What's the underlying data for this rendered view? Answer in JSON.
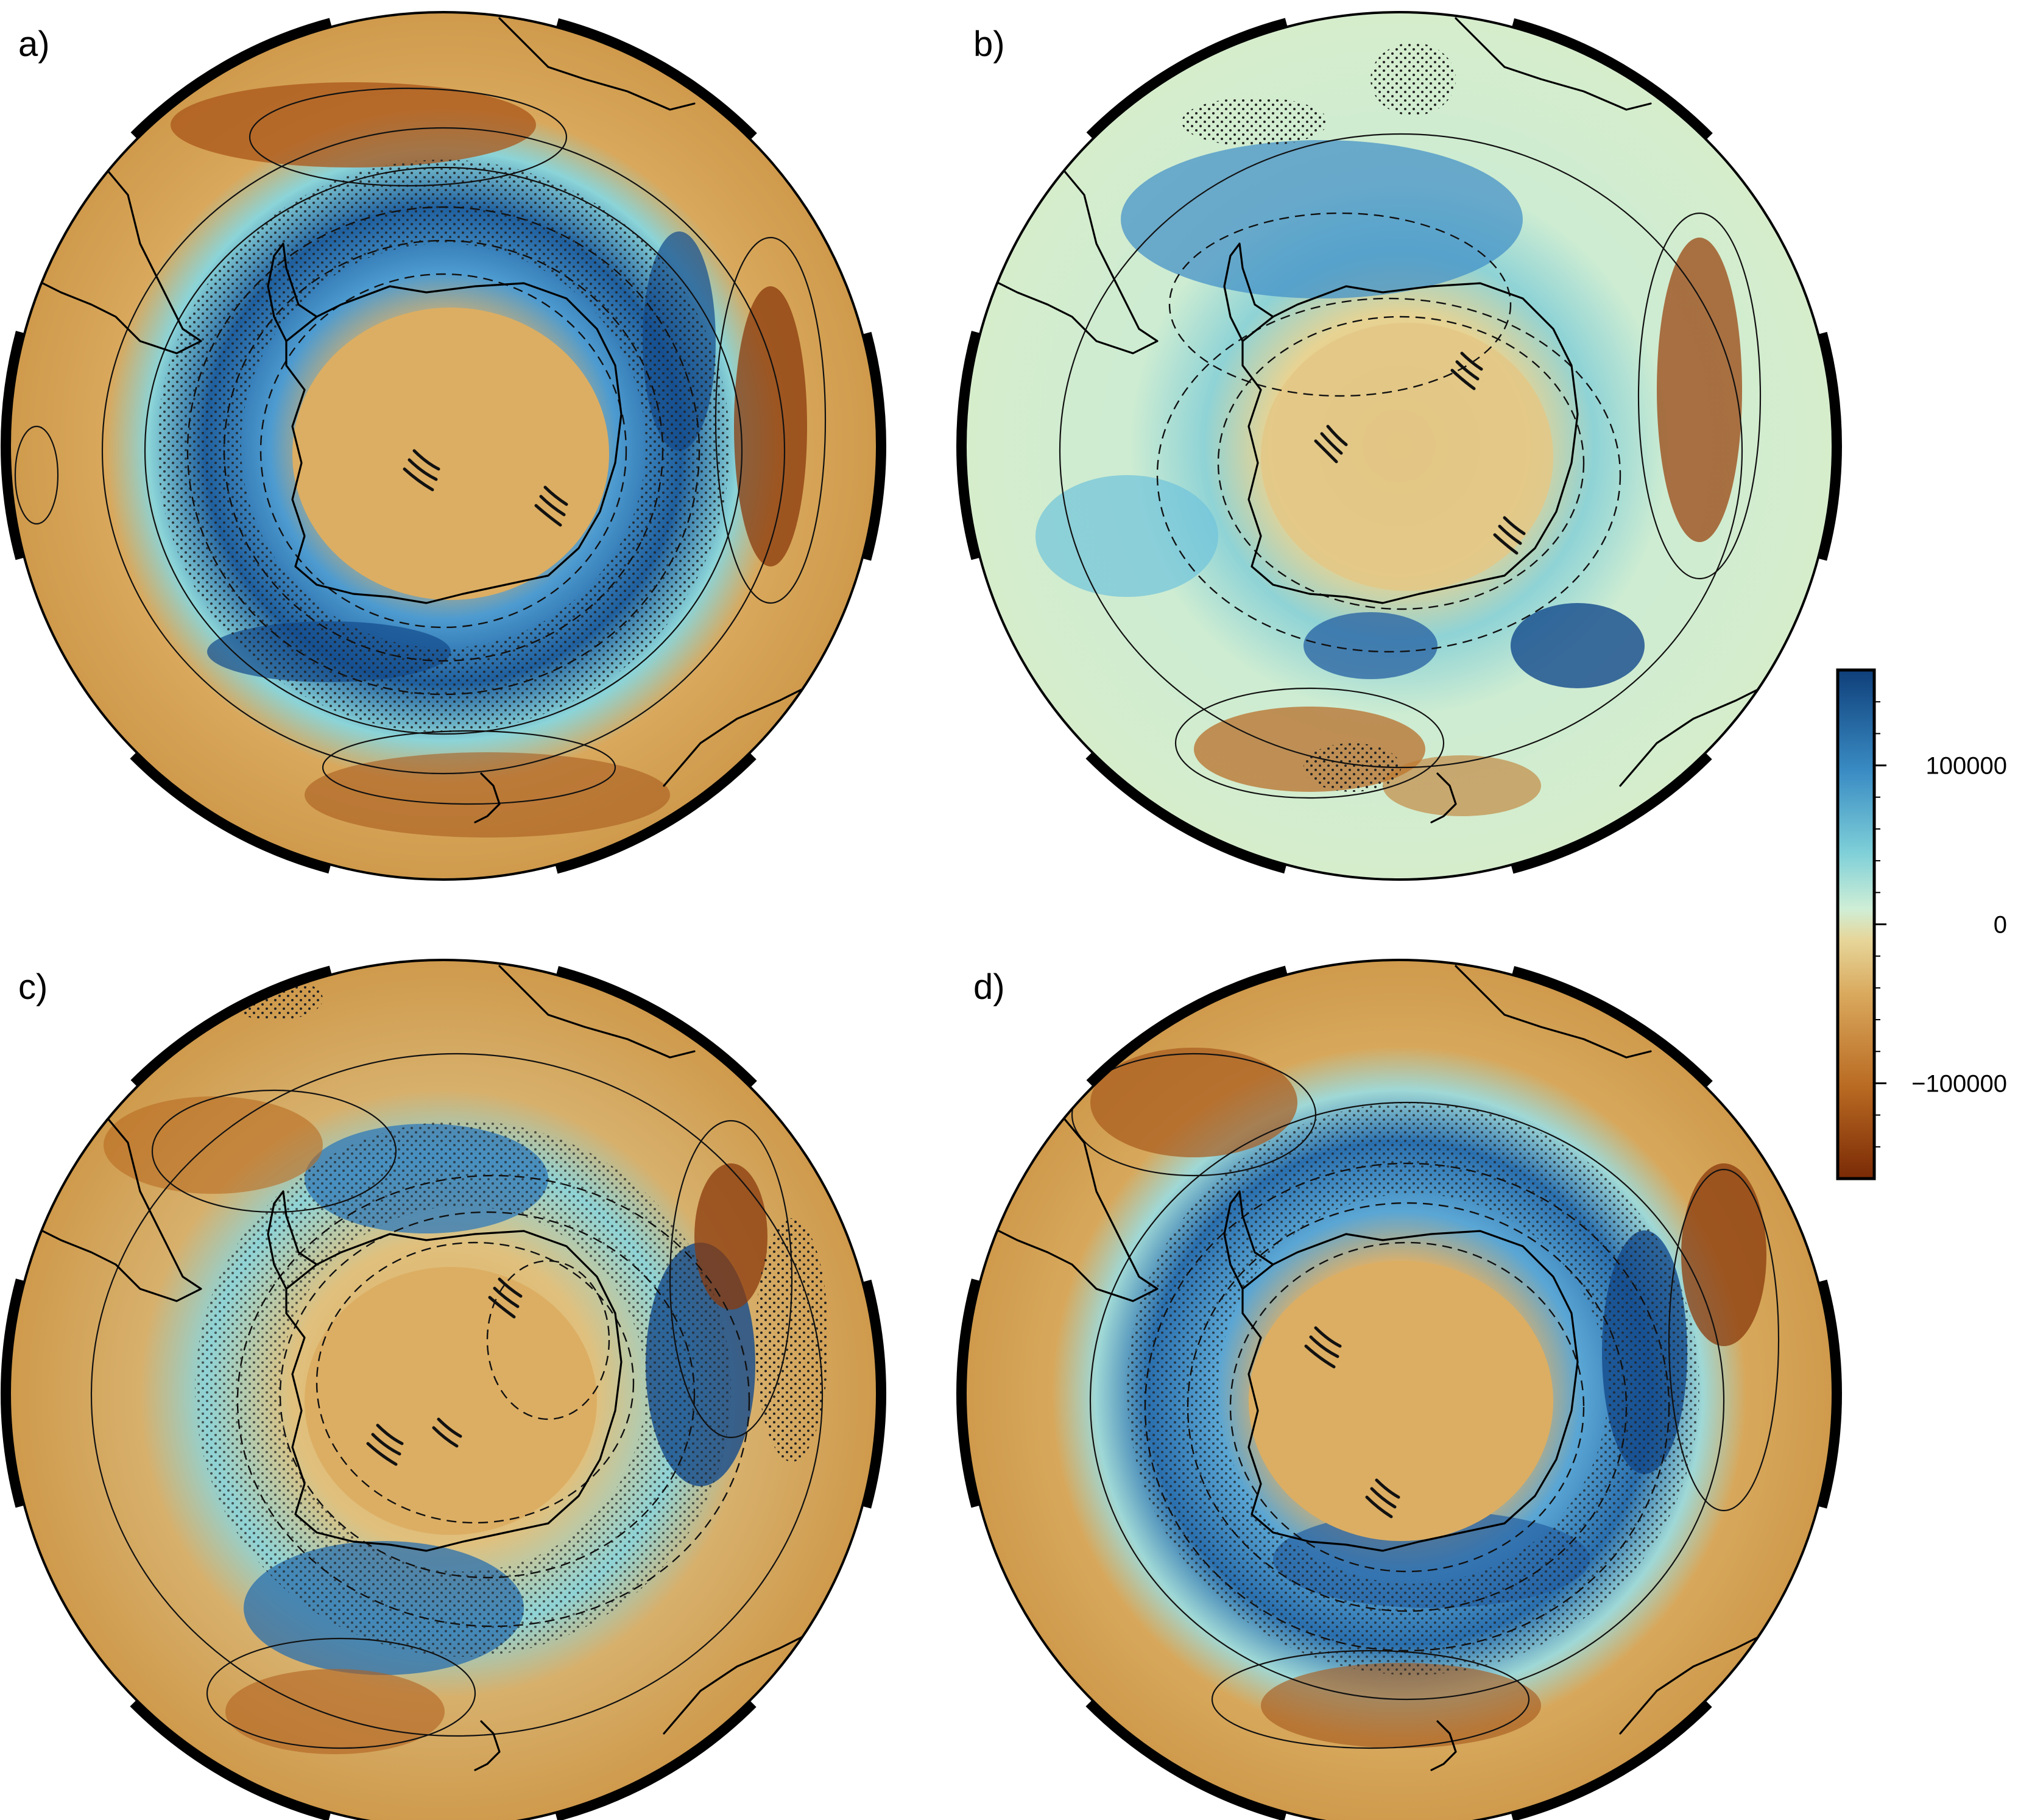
{
  "panels": [
    {
      "id": "a",
      "label": "a)"
    },
    {
      "id": "b",
      "label": "b)"
    },
    {
      "id": "c",
      "label": "c)"
    },
    {
      "id": "d",
      "label": "d)"
    }
  ],
  "colorbar": {
    "min": -160000,
    "max": 160000,
    "ticks": [
      {
        "value": 100000,
        "label": "100000"
      },
      {
        "value": 0,
        "label": "0"
      },
      {
        "value": -100000,
        "label": "−100000"
      }
    ],
    "colors": {
      "high": "#0f3f7a",
      "mid_high": "#3a8cc4",
      "mid": "#cfeed6",
      "mid_low": "#d9a85c",
      "low": "#7a2a05"
    }
  }
}
